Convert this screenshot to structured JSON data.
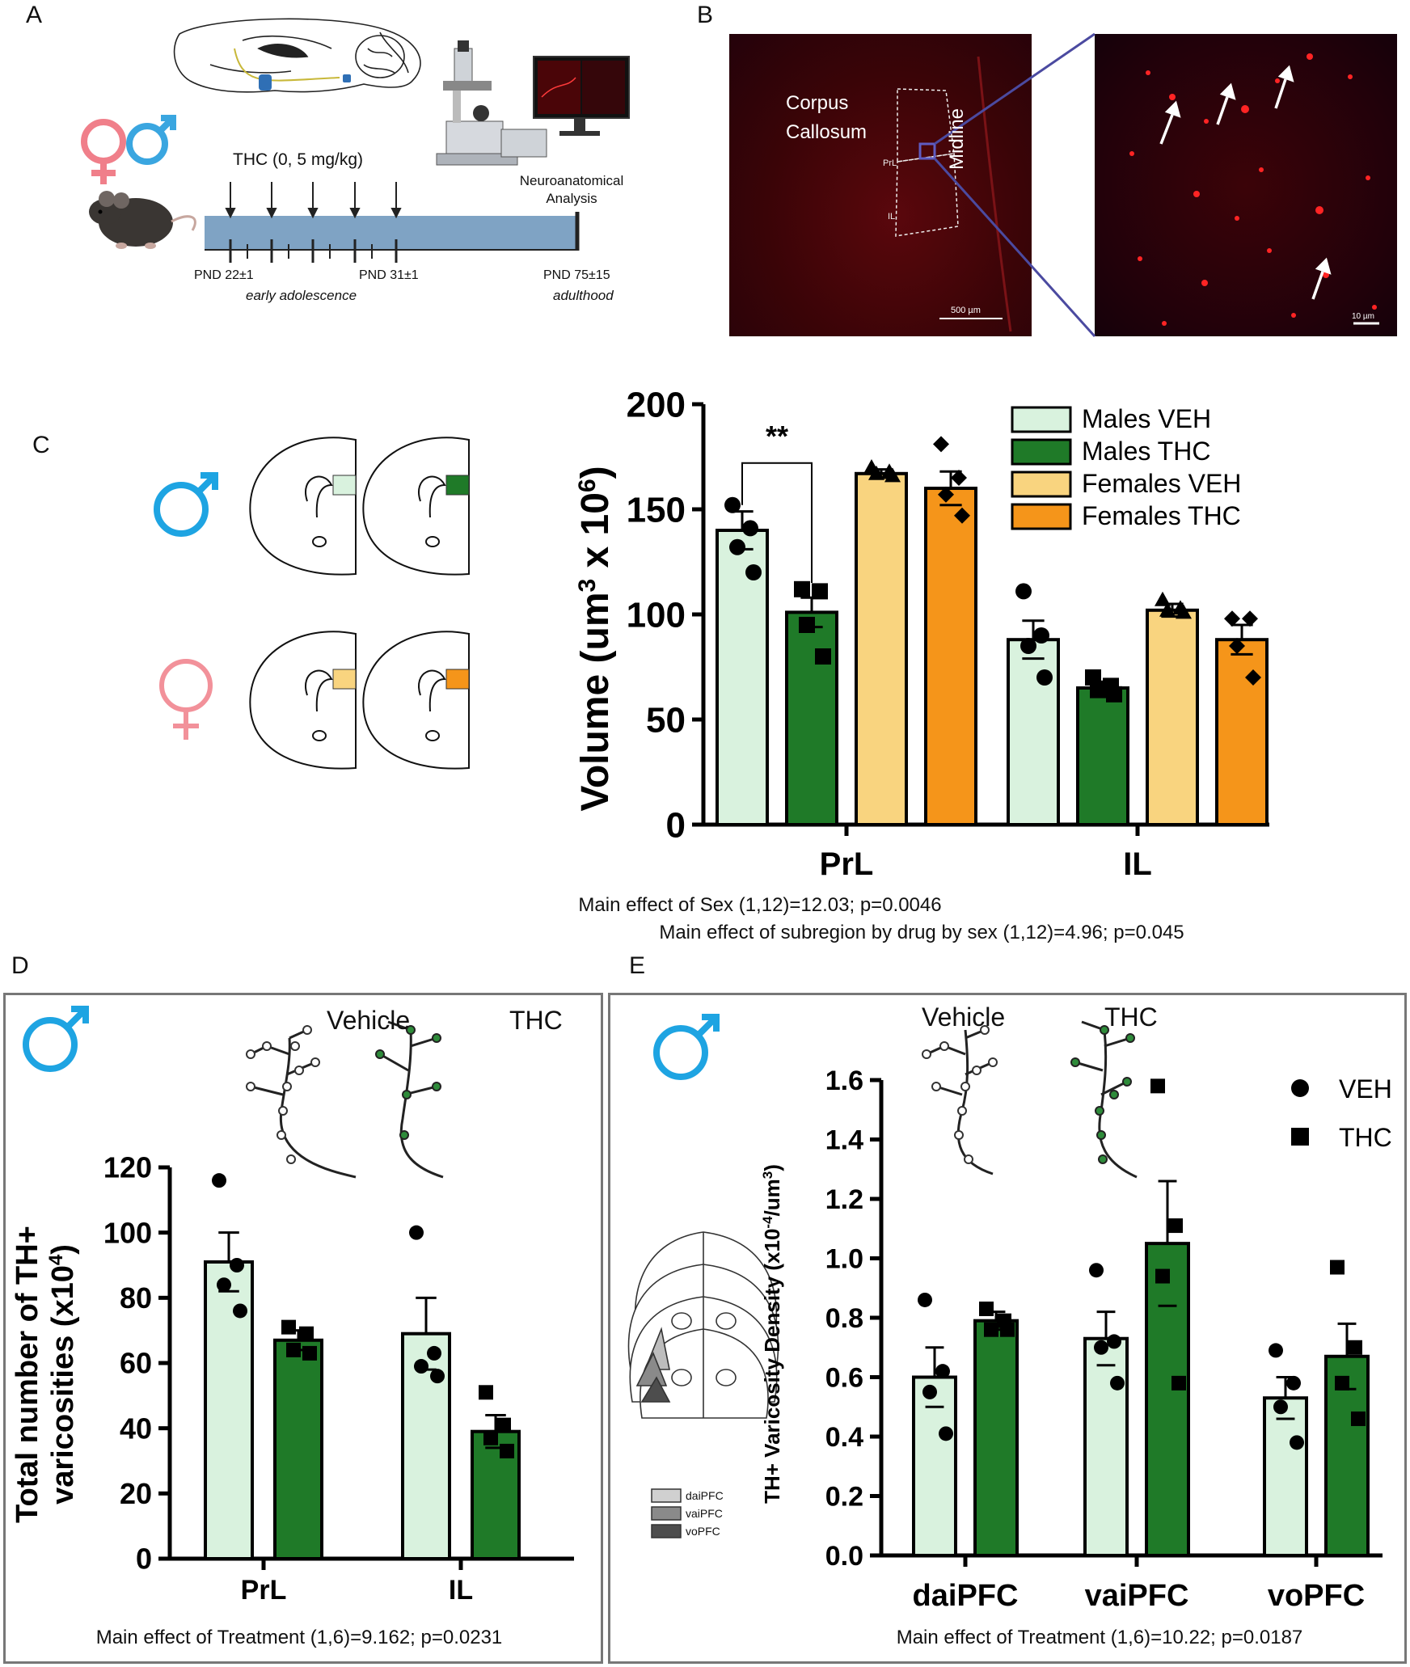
{
  "panels": {
    "A": {
      "label": "A",
      "treatment": "THC (0,  5  mg/kg)",
      "analysis_line1": "Neuroanatomical",
      "analysis_line2": "Analysis",
      "pnd_start": "PND 22±1",
      "pnd_mid": "PND 31±1",
      "pnd_end": "PND 75±15",
      "stage_early": "early adolescence",
      "stage_adult": "adulthood",
      "colors": {
        "timeline": "#7fa3c4",
        "female": "#f07f8a",
        "male": "#3aa6e0"
      }
    },
    "B": {
      "label": "B",
      "corpus_line1": "Corpus",
      "corpus_line2": "Callosum",
      "midline": "Midline",
      "prl": "PrL",
      "il": "IL",
      "scale_left": "500 µm",
      "scale_right": "10 µm",
      "colors": {
        "tissue": "#3a0508",
        "signal": "#ff2a2a",
        "frame": "#4b4aa0"
      }
    },
    "C": {
      "label": "C",
      "stat_line1": "Main effect of  Sex (1,12)=12.03; p=0.0046",
      "stat_line2": "Main effect of subregion by drug by sex (1,12)=4.96; p=0.045"
    },
    "D": {
      "label": "D",
      "legend_vehicle": "Vehicle",
      "legend_thc": "THC",
      "stat": "Main effect of Treatment (1,6)=9.162; p=0.0231"
    },
    "E": {
      "label": "E",
      "legend_vehicle": "Vehicle",
      "legend_thc": "THC",
      "atlas_labels": [
        "daiPFC",
        "vaiPFC",
        "voPFC"
      ],
      "stat": "Main effect of Treatment (1,6)=10.22; p=0.0187"
    }
  },
  "chart_data": [
    {
      "id": "C",
      "type": "bar",
      "ylabel": "Volume (um³ x 10⁶)",
      "ylabel_main": "Volume (um",
      "ylabel_sup1": "3",
      "ylabel_mid": " x 10",
      "ylabel_sup2": "6",
      "ylabel_end": ")",
      "ylim": [
        0,
        200
      ],
      "yticks": [
        "0",
        "50",
        "100",
        "150",
        "200"
      ],
      "categories": [
        "PrL",
        "IL"
      ],
      "significance": "**",
      "series": [
        {
          "name": "Males VEH",
          "color": "#d9f2de",
          "marker": "circle",
          "values": [
            140,
            88
          ],
          "sem": [
            9,
            9
          ],
          "points": [
            [
              152,
              141,
              132,
              120
            ],
            [
              111,
              90,
              85,
              70
            ]
          ]
        },
        {
          "name": "Males THC",
          "color": "#1f7a28",
          "marker": "square",
          "values": [
            101,
            65
          ],
          "sem": [
            7,
            3
          ],
          "points": [
            [
              112,
              111,
              95,
              80
            ],
            [
              70,
              66,
              64,
              62
            ]
          ]
        },
        {
          "name": "Females VEH",
          "color": "#f9d47f",
          "marker": "triangle",
          "values": [
            167,
            102
          ],
          "sem": [
            2,
            3
          ],
          "points": [
            [
              170,
              168,
              167,
              166
            ],
            [
              107,
              103,
              102,
              101
            ]
          ]
        },
        {
          "name": "Females THC",
          "color": "#f5951a",
          "marker": "diamond",
          "values": [
            160,
            88
          ],
          "sem": [
            8,
            7
          ],
          "points": [
            [
              181,
              165,
              157,
              147
            ],
            [
              98,
              98,
              85,
              70
            ]
          ]
        }
      ]
    },
    {
      "id": "D",
      "type": "bar",
      "ylabel": "Total number of TH+ varicosities (x10⁴)",
      "ylabel_line1": "Total number of TH+",
      "ylabel_line2": "varicosities (x10",
      "ylabel_sup": "4",
      "ylabel_end": ")",
      "ylim": [
        0,
        120
      ],
      "yticks": [
        "0",
        "20",
        "40",
        "60",
        "80",
        "100",
        "120"
      ],
      "categories": [
        "PrL",
        "IL"
      ],
      "series": [
        {
          "name": "Vehicle",
          "color": "#d9f2de",
          "marker": "circle",
          "values": [
            91,
            69
          ],
          "sem": [
            9,
            11
          ],
          "points": [
            [
              116,
              90,
              84,
              76
            ],
            [
              100,
              63,
              59,
              56
            ]
          ]
        },
        {
          "name": "THC",
          "color": "#1f7a28",
          "marker": "square",
          "values": [
            67,
            39
          ],
          "sem": [
            3,
            5
          ],
          "points": [
            [
              71,
              69,
              64,
              63
            ],
            [
              51,
              41,
              37,
              33
            ]
          ]
        }
      ]
    },
    {
      "id": "E",
      "type": "bar",
      "ylabel": "TH+ Varicosity Density (x10⁻⁴/um³)",
      "ylabel_main": "TH+ Varicosity Density (x10",
      "ylabel_sup1": "-4",
      "ylabel_mid": "/um",
      "ylabel_sup2": "3",
      "ylabel_end": ")",
      "ylim": [
        0,
        1.6
      ],
      "yticks": [
        "0.0",
        "0.2",
        "0.4",
        "0.6",
        "0.8",
        "1.0",
        "1.2",
        "1.4",
        "1.6"
      ],
      "categories": [
        "daiPFC",
        "vaiPFC",
        "voPFC"
      ],
      "series": [
        {
          "name": "VEH",
          "color": "#d9f2de",
          "marker": "circle",
          "values": [
            0.6,
            0.73,
            0.53
          ],
          "sem": [
            0.1,
            0.09,
            0.07
          ],
          "points": [
            [
              0.86,
              0.62,
              0.55,
              0.41
            ],
            [
              0.96,
              0.72,
              0.7,
              0.58
            ],
            [
              0.69,
              0.58,
              0.5,
              0.38
            ]
          ]
        },
        {
          "name": "THC",
          "color": "#1f7a28",
          "marker": "square",
          "values": [
            0.79,
            1.05,
            0.67
          ],
          "sem": [
            0.03,
            0.21,
            0.11
          ],
          "points": [
            [
              0.83,
              0.79,
              0.76,
              0.76
            ],
            [
              1.58,
              1.11,
              0.94,
              0.58
            ],
            [
              0.97,
              0.7,
              0.58,
              0.46
            ]
          ]
        }
      ]
    }
  ]
}
